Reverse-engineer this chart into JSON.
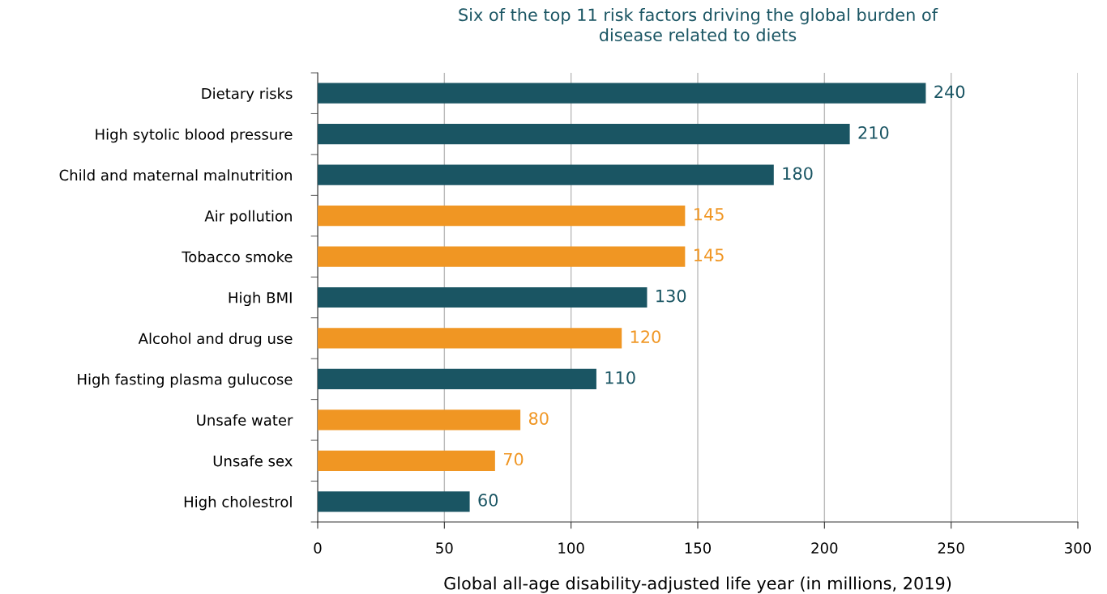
{
  "chart_data": {
    "type": "bar",
    "orientation": "horizontal",
    "title": "Six of the top 11 risk factors driving the global burden of\ndisease related to diets",
    "xlabel": "Global all-age disability-adjusted life year (in millions, 2019)",
    "categories": [
      "Dietary risks",
      "High sytolic blood pressure",
      "Child and maternal malnutrition",
      "Air pollution",
      "Tobacco smoke",
      "High BMI",
      "Alcohol and drug use",
      "High fasting plasma gulucose",
      "Unsafe water",
      "Unsafe sex",
      "High cholestrol"
    ],
    "values": [
      240,
      210,
      180,
      145,
      145,
      130,
      120,
      110,
      80,
      70,
      60
    ],
    "colors": [
      "#1a5563",
      "#1a5563",
      "#1a5563",
      "#f09623",
      "#f09623",
      "#1a5563",
      "#f09623",
      "#1a5563",
      "#f09623",
      "#f09623",
      "#1a5563"
    ],
    "xlim": [
      0,
      300
    ],
    "xticks": [
      0,
      50,
      100,
      150,
      200,
      250,
      300
    ],
    "grid": "x",
    "data_labels": true
  }
}
